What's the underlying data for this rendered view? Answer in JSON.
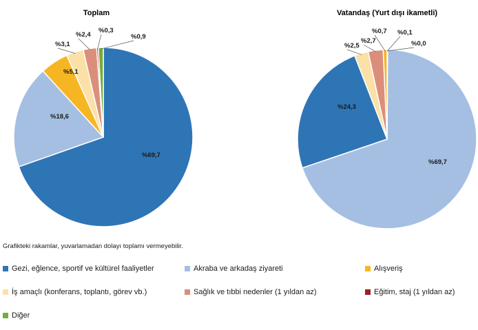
{
  "chart_data": [
    {
      "type": "pie",
      "title": "Toplam",
      "slices": [
        {
          "name": "Gezi, eğlence, sportif ve kültürel faaliyetler",
          "value": 69.7,
          "label": "%69,7",
          "color": "#2e75b6"
        },
        {
          "name": "Akraba ve arkadaş ziyareti",
          "value": 18.6,
          "label": "%18,6",
          "color": "#a5bfe3"
        },
        {
          "name": "Alışveriş",
          "value": 5.1,
          "label": "%5,1",
          "color": "#f6b624"
        },
        {
          "name": "İş amaçlı (konferans, toplantı, görev vb.)",
          "value": 3.1,
          "label": "%3,1",
          "color": "#fbe0a8"
        },
        {
          "name": "Sağlık ve tıbbi nedenler (1 yıldan az)",
          "value": 2.4,
          "label": "%2,4",
          "color": "#db8f7b"
        },
        {
          "name": "Eğitim, staj (1 yıldan az)",
          "value": 0.3,
          "label": "%0,3",
          "color": "#a21d25"
        },
        {
          "name": "Diğer",
          "value": 0.9,
          "label": "%0,9",
          "color": "#74ad3a"
        }
      ]
    },
    {
      "type": "pie",
      "title": "Vatandaş (Yurt dışı ikametli)",
      "slices": [
        {
          "name": "Gezi, eğlence, sportif ve kültürel faaliyetler",
          "value": 24.3,
          "label": "%24,3",
          "color": "#2e75b6"
        },
        {
          "name": "Akraba ve arkadaş ziyareti",
          "value": 69.7,
          "label": "%69,7",
          "color": "#a5bfe3"
        },
        {
          "name": "Alışveriş",
          "value": 0.7,
          "label": "%0,7",
          "color": "#f6b624"
        },
        {
          "name": "İş amaçlı (konferans, toplantı, görev vb.)",
          "value": 2.5,
          "label": "%2,5",
          "color": "#fbe0a8"
        },
        {
          "name": "Sağlık ve tıbbi nedenler (1 yıldan az)",
          "value": 2.7,
          "label": "%2,7",
          "color": "#db8f7b"
        },
        {
          "name": "Eğitim, staj (1 yıldan az)",
          "value": 0.1,
          "label": "%0,1",
          "color": "#a21d25"
        },
        {
          "name": "Diğer",
          "value": 0.0,
          "label": "%0,0",
          "color": "#74ad3a"
        }
      ]
    }
  ],
  "note": "Grafikteki rakamlar, yuvarlamadan dolayı toplamı vermeyebilir.",
  "legend": [
    {
      "label": "Gezi, eğlence, sportif ve kültürel faaliyetler",
      "color": "#2e75b6"
    },
    {
      "label": "Akraba ve arkadaş ziyareti",
      "color": "#a5bfe3"
    },
    {
      "label": "Alışveriş",
      "color": "#f6b624"
    },
    {
      "label": "İş amaçlı (konferans, toplantı, görev vb.)",
      "color": "#fbe0a8"
    },
    {
      "label": "Sağlık ve tıbbi nedenler (1 yıldan az)",
      "color": "#db8f7b"
    },
    {
      "label": "Eğitim, staj (1 yıldan az)",
      "color": "#a21d25"
    },
    {
      "label": "Diğer",
      "color": "#74ad3a"
    }
  ]
}
